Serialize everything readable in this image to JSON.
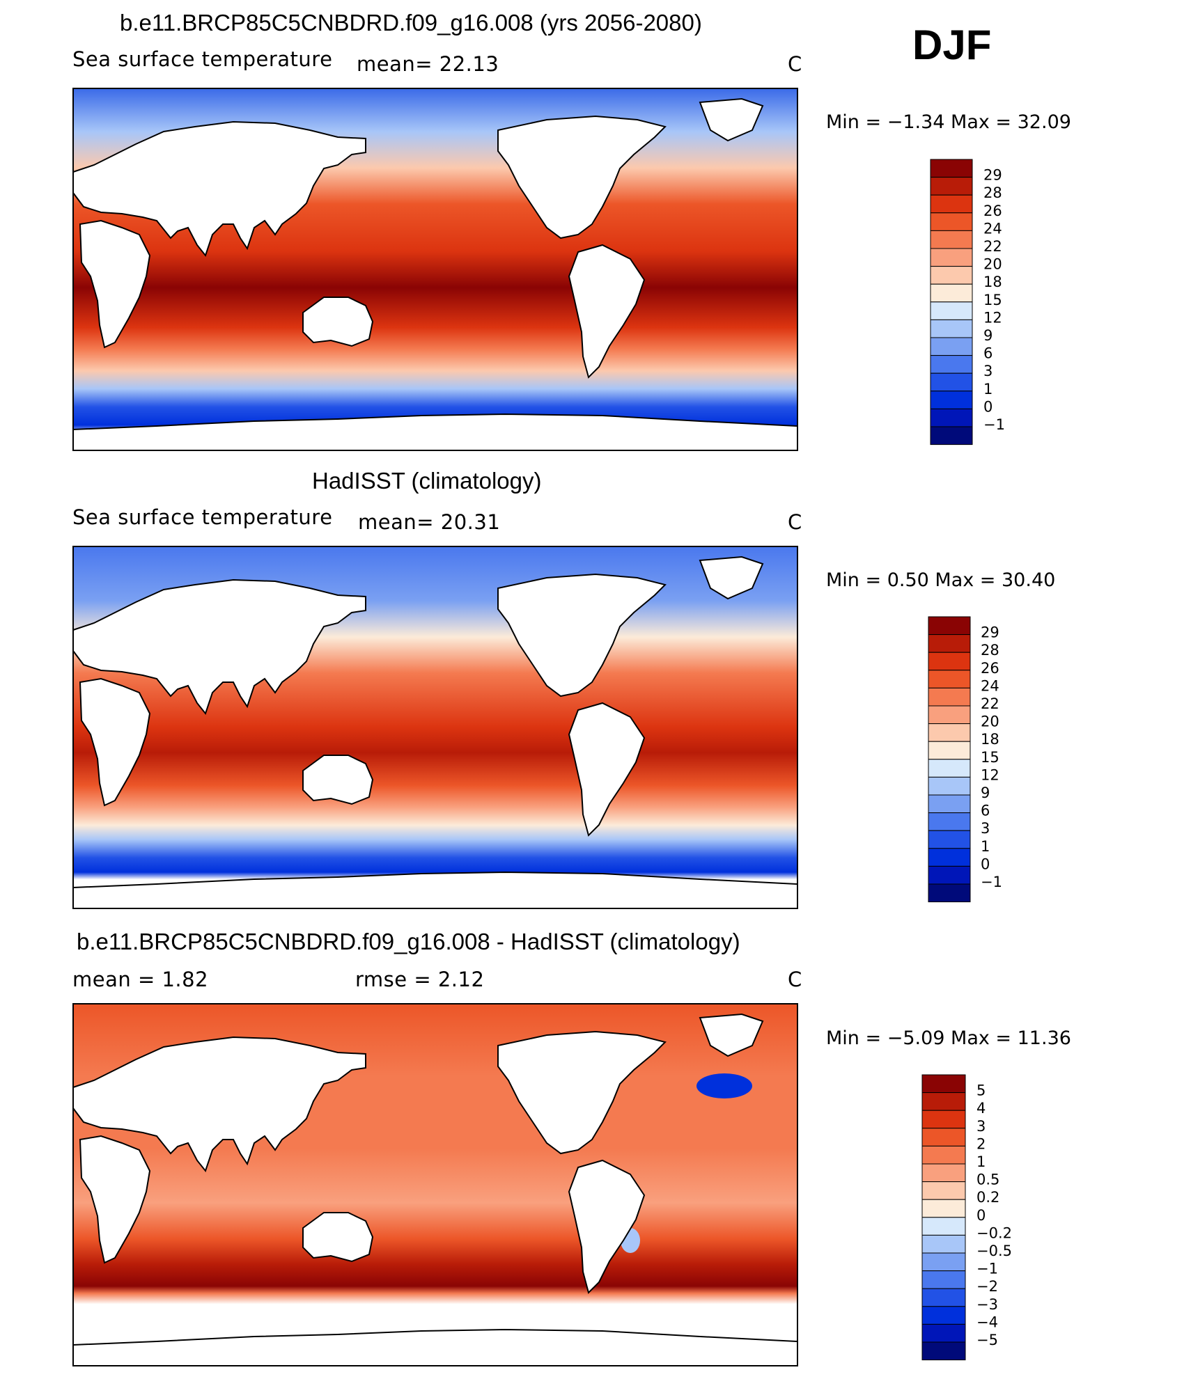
{
  "season": "DJF",
  "colors": {
    "sst_scale": [
      "#000a7a",
      "#0016b8",
      "#0030dc",
      "#2252e6",
      "#4a78ee",
      "#7aa0f2",
      "#a8c6f8",
      "#d6e8fb",
      "#fcebd9",
      "#fcc9ad",
      "#f9a07e",
      "#f47a50",
      "#ec5628",
      "#dc3410",
      "#b81c08",
      "#8a0404"
    ],
    "diff_scale": [
      "#000a7a",
      "#0016b8",
      "#0030dc",
      "#2252e6",
      "#4a78ee",
      "#7aa0f2",
      "#a8c6f8",
      "#d6e8fb",
      "#fcebd9",
      "#fcc9ad",
      "#f9a07e",
      "#f47a50",
      "#ec5628",
      "#dc3410",
      "#b81c08",
      "#8a0404"
    ]
  },
  "panels": [
    {
      "title": "b.e11.BRCP85C5CNBDRD.f09_g16.008 (yrs 2056-2080)",
      "left_label": "Sea surface temperature",
      "mid_label": "mean=  22.13",
      "units": "C",
      "minmax": "Min =   −1.34 Max =   32.09",
      "levels": [
        "29",
        "28",
        "26",
        "24",
        "22",
        "20",
        "18",
        "15",
        "12",
        "9",
        "6",
        "3",
        "1",
        "0",
        "−1"
      ],
      "kind": "model"
    },
    {
      "title": "HadISST (climatology)",
      "left_label": "Sea surface temperature",
      "mid_label": "mean=  20.31",
      "units": "C",
      "minmax": "Min =    0.50 Max =   30.40",
      "levels": [
        "29",
        "28",
        "26",
        "24",
        "22",
        "20",
        "18",
        "15",
        "12",
        "9",
        "6",
        "3",
        "1",
        "0",
        "−1"
      ],
      "kind": "obs"
    },
    {
      "title": "b.e11.BRCP85C5CNBDRD.f09_g16.008 - HadISST (climatology)",
      "left_label": "mean =    1.82",
      "mid_label": "rmse =    2.12",
      "units": "C",
      "minmax": "Min =   −5.09 Max =   11.36",
      "levels": [
        "5",
        "4",
        "3",
        "2",
        "1",
        "0.5",
        "0.2",
        "0",
        "−0.2",
        "−0.5",
        "−1",
        "−2",
        "−3",
        "−4",
        "−5"
      ],
      "kind": "diff"
    }
  ]
}
